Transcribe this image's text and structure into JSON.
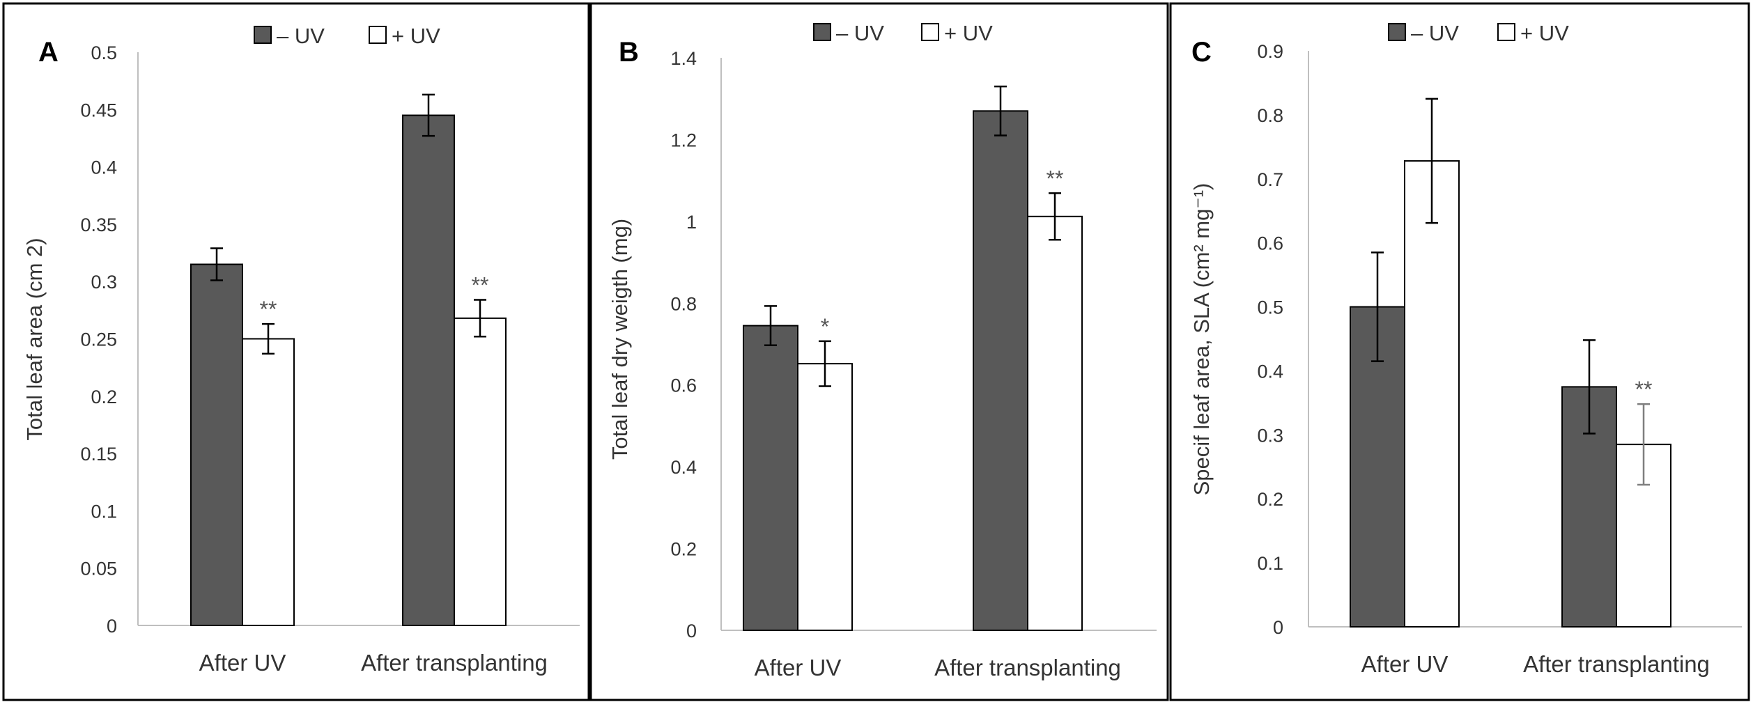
{
  "chart_data": [
    {
      "type": "bar",
      "panel": "A",
      "categories": [
        "After UV",
        "After transplanting"
      ],
      "series": [
        {
          "name": "– UV",
          "color": "#595959",
          "values": [
            0.315,
            0.445
          ],
          "errors": [
            0.014,
            0.018
          ]
        },
        {
          "name": "+ UV",
          "color": "#ffffff",
          "values": [
            0.25,
            0.268
          ],
          "errors": [
            0.013,
            0.016
          ]
        }
      ],
      "significance": [
        "**",
        "**"
      ],
      "ylabel": "Total leaf area (cm 2)",
      "ylim": [
        0,
        0.5
      ],
      "yticks": [
        "0",
        "0.05",
        "0.1",
        "0.15",
        "0.2",
        "0.25",
        "0.3",
        "0.35",
        "0.4",
        "0.45",
        "0.5"
      ],
      "grid": false,
      "legend": "top"
    },
    {
      "type": "bar",
      "panel": "B",
      "categories": [
        "After UV",
        "After transplanting"
      ],
      "series": [
        {
          "name": "– UV",
          "color": "#595959",
          "values": [
            0.745,
            1.27
          ],
          "errors": [
            0.048,
            0.06
          ]
        },
        {
          "name": "+ UV",
          "color": "#ffffff",
          "values": [
            0.652,
            1.012
          ],
          "errors": [
            0.055,
            0.057
          ]
        }
      ],
      "significance": [
        "*",
        "**"
      ],
      "ylabel": "Total leaf dry weigth (mg)",
      "ylim": [
        0,
        1.4
      ],
      "yticks": [
        "0",
        "0.2",
        "0.4",
        "0.6",
        "0.8",
        "1",
        "1.2",
        "1.4"
      ],
      "grid": false,
      "legend": "top"
    },
    {
      "type": "bar",
      "panel": "C",
      "categories": [
        "After UV",
        "After transplanting"
      ],
      "series": [
        {
          "name": "– UV",
          "color": "#595959",
          "values": [
            0.5,
            0.375
          ],
          "errors": [
            0.085,
            0.073
          ]
        },
        {
          "name": "+ UV",
          "color": "#ffffff",
          "values": [
            0.728,
            0.285
          ],
          "errors": [
            0.097,
            0.063
          ]
        }
      ],
      "significance": [
        "",
        "**"
      ],
      "ylabel": "Specif leaf area, SLA (cm² mg⁻¹)",
      "ylim": [
        0,
        0.9
      ],
      "yticks": [
        "0",
        "0.1",
        "0.2",
        "0.3",
        "0.4",
        "0.5",
        "0.6",
        "0.7",
        "0.8",
        "0.9"
      ],
      "grid": false,
      "legend": "top"
    }
  ]
}
